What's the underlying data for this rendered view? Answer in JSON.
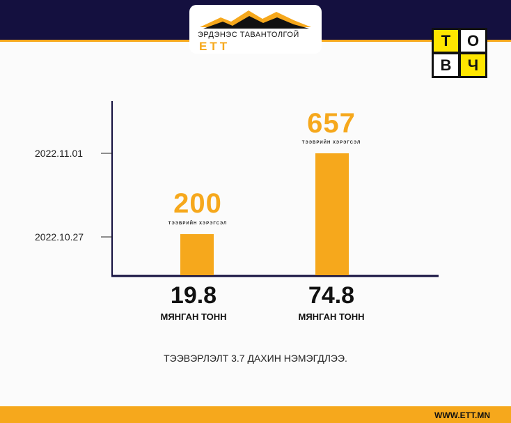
{
  "header": {
    "logo_text": "ЭРДЭНЭС ТАВАНТОЛГОЙ",
    "logo_abbr": "ETT",
    "badge_letters": [
      "Т",
      "О",
      "В",
      "Ч"
    ]
  },
  "colors": {
    "accent": "#f6a81c",
    "navy": "#14103f",
    "badge_yellow": "#ffe600"
  },
  "chart_data": {
    "type": "bar",
    "categories": [
      "2022.10.27",
      "2022.11.01"
    ],
    "values": [
      200,
      657
    ],
    "value_label": "ТЭЭВРИЙН ХЭРЭГСЭЛ",
    "tonnage": [
      "19.8",
      "74.8"
    ],
    "tonnage_unit": "МЯНГАН ТОНН",
    "ylim": [
      0,
      700
    ]
  },
  "note": "ТЭЭВЭРЛЭЛТ 3.7 ДАХИН НЭМЭГДЛЭЭ.",
  "footer": {
    "url": "WWW.ETT.MN"
  }
}
